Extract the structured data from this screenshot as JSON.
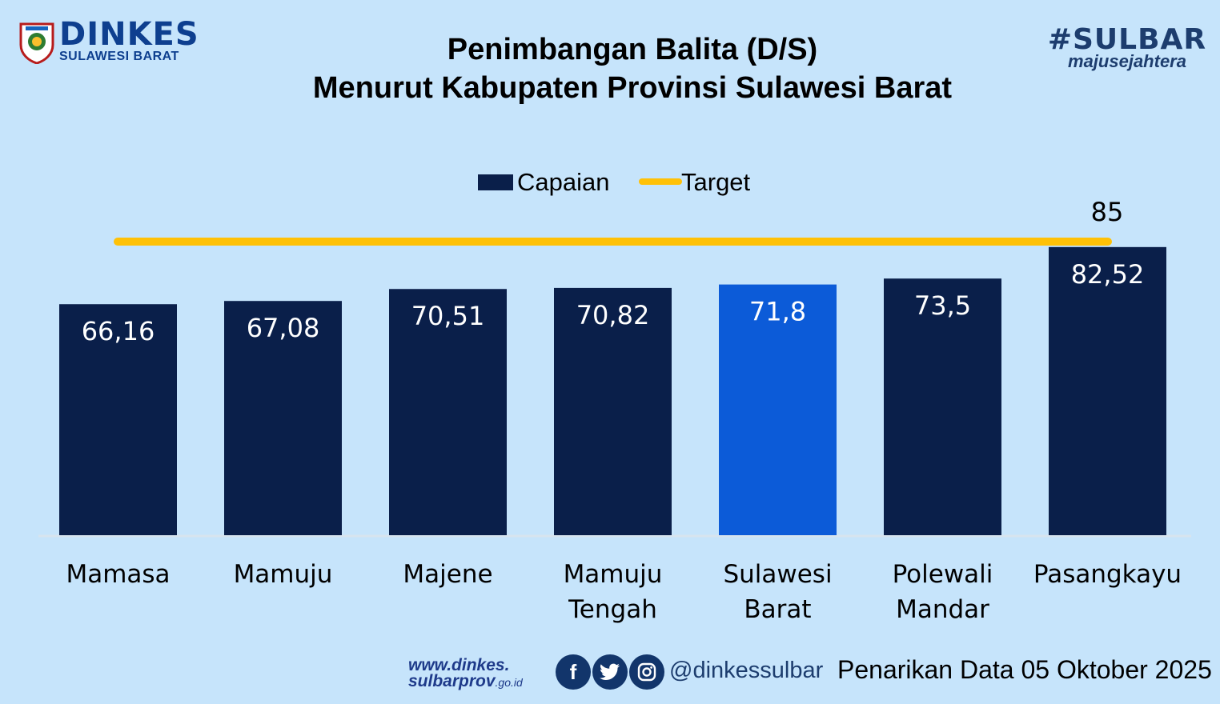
{
  "logo": {
    "brand": "DINKES",
    "sub": "SULAWESI BARAT"
  },
  "tag": {
    "hash": "#SULBAR",
    "motto": "majusejahtera"
  },
  "title": {
    "line1": "Penimbangan Balita (D/S)",
    "line2": "Menurut Kabupaten Provinsi Sulawesi Barat"
  },
  "chart_data": {
    "type": "bar",
    "categories": [
      [
        "Mamasa"
      ],
      [
        "Mamuju"
      ],
      [
        "Majene"
      ],
      [
        "Mamuju",
        "Tengah"
      ],
      [
        "Sulawesi",
        "Barat"
      ],
      [
        "Polewali",
        "Mandar"
      ],
      [
        "Pasangkayu"
      ]
    ],
    "series": [
      {
        "name": "Capaian",
        "values": [
          66.16,
          67.08,
          70.51,
          70.82,
          71.8,
          73.5,
          82.52
        ],
        "labels": [
          "66,16",
          "67,08",
          "70,51",
          "70,82",
          "71,8",
          "73,5",
          "82,52"
        ]
      }
    ],
    "target": {
      "name": "Target",
      "value": 85,
      "label": "85"
    },
    "highlight_index": 4,
    "legend": "top-center",
    "ylim": [
      0,
      85
    ],
    "colors": {
      "bar": "#0a1f4a",
      "highlight": "#0c5bd8",
      "target": "#ffc107",
      "baseline": "#d7e4ee",
      "label": "#ffffff"
    }
  },
  "footer": {
    "web_line1": "www.dinkes.",
    "web_line2": "sulbarprov",
    "web_suffix": ".go.id",
    "social_icons": [
      "facebook-icon",
      "twitter-icon",
      "instagram-icon"
    ],
    "handle": "@dinkessulbar",
    "date_note": "Penarikan Data 05 Oktober 2025"
  }
}
